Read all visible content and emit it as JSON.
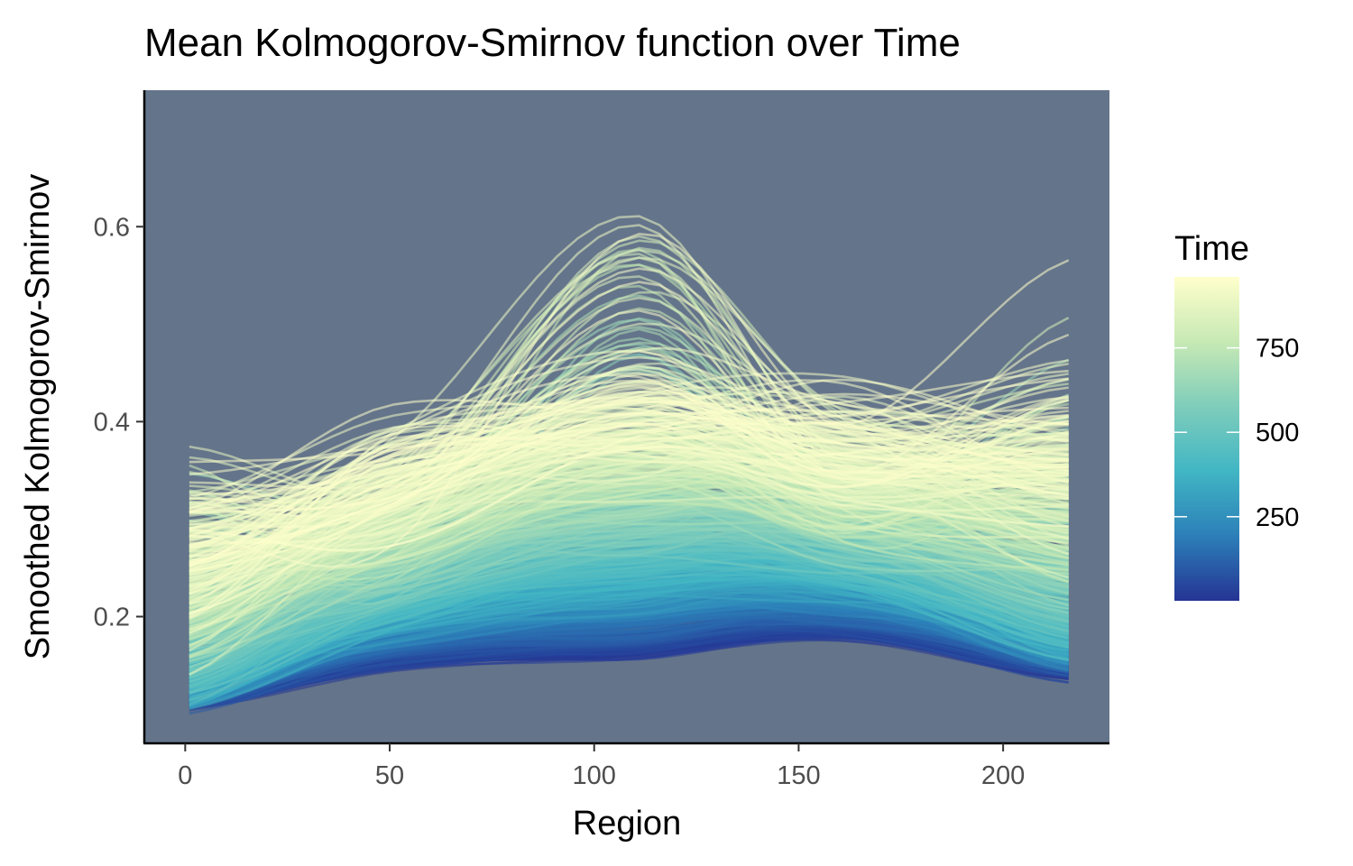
{
  "chart_data": {
    "type": "line",
    "title": "Mean Kolmogorov-Smirnov function over Time",
    "xlabel": "Region",
    "ylabel": "Smoothed Kolmogorov-Smirnov",
    "xlim": [
      -10,
      226
    ],
    "ylim": [
      0.07,
      0.74
    ],
    "x_range": [
      1,
      216
    ],
    "x_ticks": [
      0,
      50,
      100,
      150,
      200
    ],
    "y_ticks": [
      0.2,
      0.4,
      0.6
    ],
    "x_tick_labels": [
      "0",
      "50",
      "100",
      "150",
      "200"
    ],
    "y_tick_labels": [
      "0.2",
      "0.4",
      "0.6"
    ],
    "panel_background": "#64748a",
    "grid": false,
    "color_scale": {
      "name": "Time",
      "min": 1,
      "max": 960,
      "stops": [
        "#253494",
        "#2c7fb8",
        "#41b6c4",
        "#7fcdbb",
        "#c7e9b4",
        "#ffffcc"
      ],
      "legend_ticks": [
        250,
        500,
        750
      ],
      "legend_tick_labels": [
        "250",
        "500",
        "750"
      ],
      "legend_position": "right"
    },
    "series_count": 960,
    "series_description_profiles": {
      "note": "each series i (Time = i) follows a smooth curve through these approximate anchor values at Region = 1, 50, 110, 160, 216",
      "anchor_x": [
        1,
        50,
        110,
        160,
        216
      ],
      "low_time_values": [
        0.11,
        0.15,
        0.16,
        0.18,
        0.14
      ],
      "mid_time_values": [
        0.15,
        0.22,
        0.26,
        0.26,
        0.2
      ],
      "high_time_values": [
        0.28,
        0.35,
        0.42,
        0.38,
        0.38
      ]
    }
  }
}
